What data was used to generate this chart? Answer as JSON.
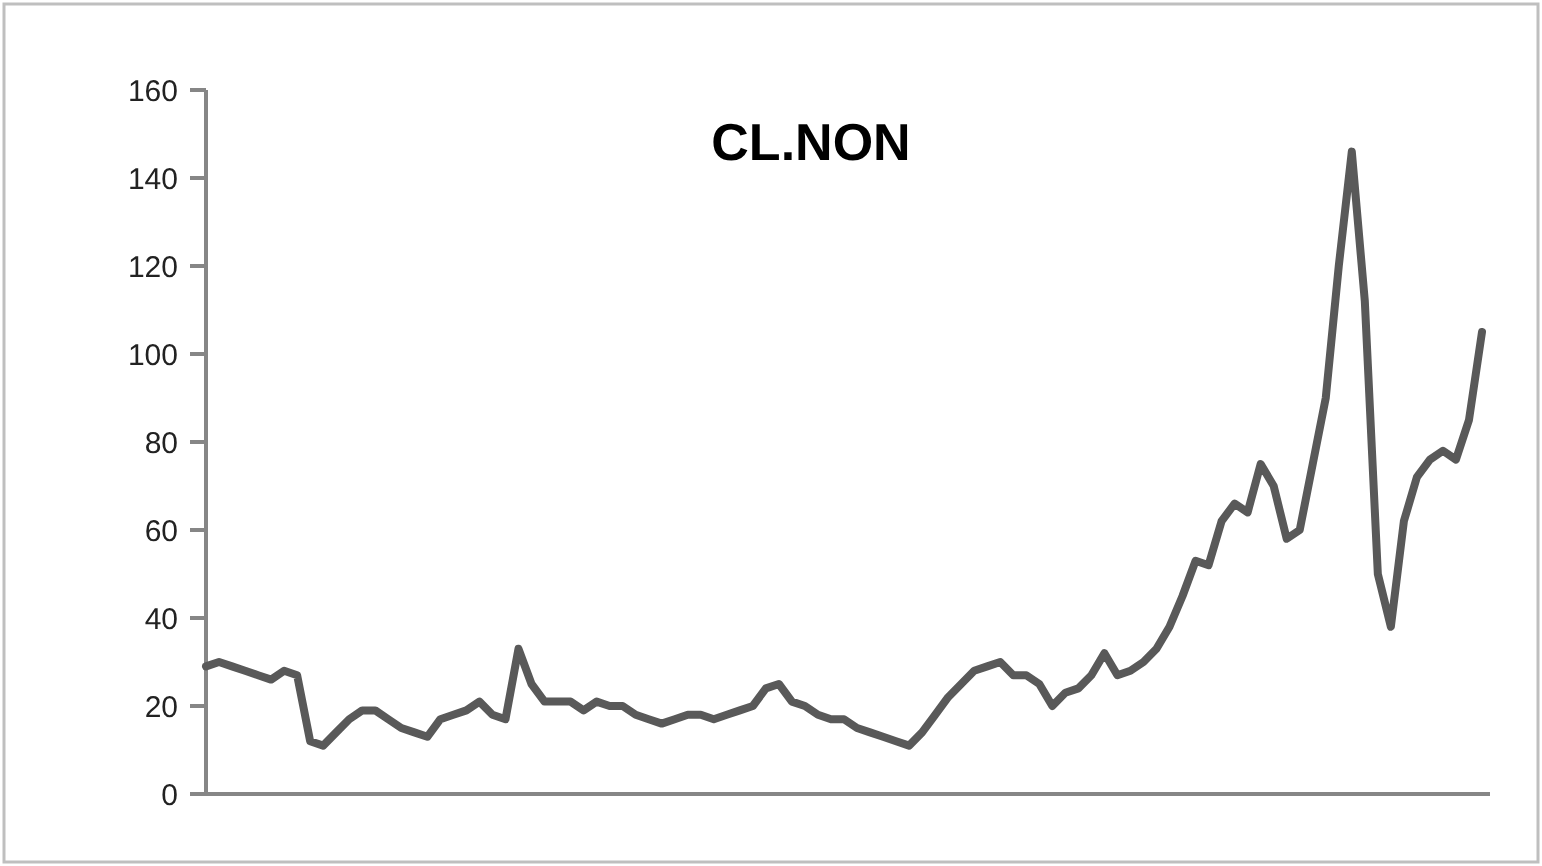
{
  "chart_data": {
    "type": "line",
    "title": "CL.NON",
    "categories": [
      null,
      null,
      null,
      null,
      null,
      null,
      null,
      null,
      null,
      null,
      null,
      null,
      null,
      null,
      null,
      null,
      null,
      null,
      null,
      null,
      null,
      null,
      null,
      null,
      null,
      null,
      null,
      null,
      null,
      null,
      null,
      null,
      null,
      null,
      null,
      null,
      null,
      null,
      null,
      null,
      null,
      null,
      null,
      null,
      null,
      null,
      null,
      null,
      null,
      null,
      null,
      null,
      null,
      null,
      null,
      null,
      null,
      null,
      null,
      null,
      null,
      null,
      null,
      null,
      null,
      null,
      null,
      null,
      null,
      null,
      null,
      null,
      null,
      null,
      null,
      null,
      null,
      null,
      null,
      null,
      null,
      null,
      null,
      null,
      null,
      null,
      null,
      null,
      null,
      null,
      null,
      null,
      null,
      null,
      null,
      null,
      null,
      null,
      null
    ],
    "series": [
      {
        "color": "#595959",
        "values": [
          29,
          30,
          29,
          28,
          27,
          26,
          28,
          27,
          12,
          11,
          14,
          17,
          19,
          19,
          17,
          15,
          14,
          13,
          17,
          18,
          19,
          21,
          18,
          17,
          33,
          25,
          21,
          21,
          21,
          19,
          21,
          20,
          20,
          18,
          17,
          16,
          17,
          18,
          18,
          17,
          18,
          19,
          20,
          24,
          25,
          21,
          20,
          18,
          17,
          17,
          15,
          14,
          13,
          12,
          11,
          14,
          18,
          22,
          25,
          28,
          29,
          30,
          27,
          27,
          25,
          20,
          23,
          24,
          27,
          32,
          27,
          28,
          30,
          33,
          38,
          45,
          53,
          52,
          62,
          66,
          64,
          75,
          70,
          58,
          60,
          75,
          90,
          120,
          146,
          112,
          50,
          38,
          62,
          72,
          76,
          78,
          76,
          85,
          105
        ]
      }
    ],
    "ylim": [
      0,
      160
    ],
    "yticks": [
      0,
      20,
      40,
      60,
      80,
      100,
      120,
      140,
      160
    ],
    "grid": false,
    "marker": "none",
    "line_style": "solid"
  }
}
